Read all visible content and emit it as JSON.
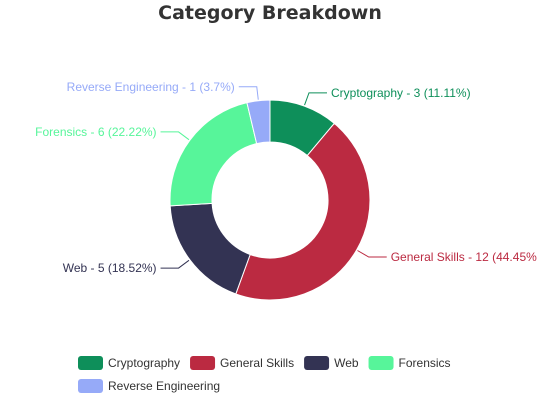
{
  "chart_data": {
    "type": "pie",
    "variant": "donut",
    "title": "Category Breakdown",
    "slices": [
      {
        "name": "Cryptography",
        "value": 3,
        "label": "Cryptography - 3 (11.11%)",
        "color": "#0e8f5a"
      },
      {
        "name": "General Skills",
        "value": 12,
        "label": "General Skills - 12 (44.45%",
        "color": "#bb2a41"
      },
      {
        "name": "Web",
        "value": 5,
        "label": "Web - 5 (18.52%)",
        "color": "#333353"
      },
      {
        "name": "Forensics",
        "value": 6,
        "label": "Forensics - 6 (22.22%)",
        "color": "#57f59a"
      },
      {
        "name": "Reverse Engineering",
        "value": 1,
        "label": "Reverse Engineering - 1 (3.7%)",
        "color": "#96aaf8"
      }
    ],
    "legend": {
      "placement": "bottom",
      "items": [
        "Cryptography",
        "General Skills",
        "Web",
        "Forensics",
        "Reverse Engineering"
      ]
    }
  }
}
